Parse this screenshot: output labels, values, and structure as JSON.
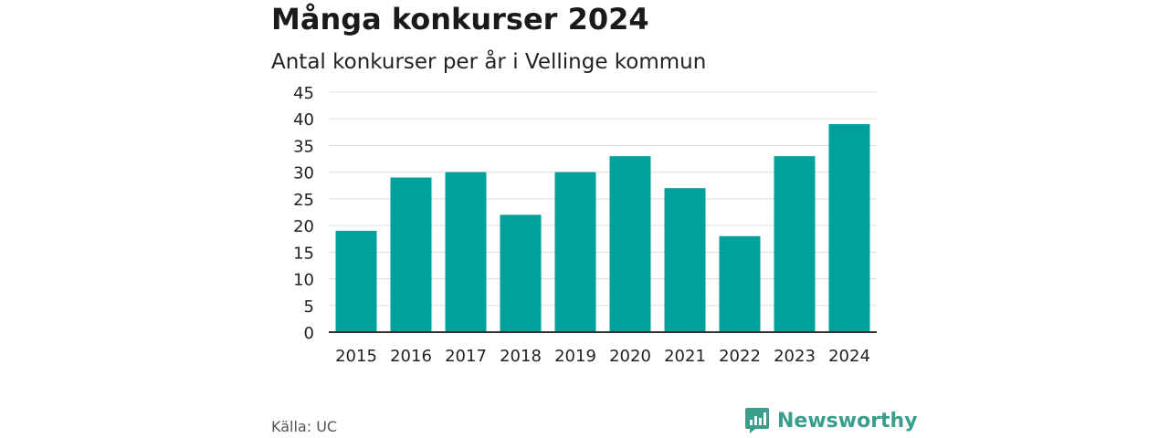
{
  "title": "Många konkurser 2024",
  "subtitle": "Antal konkurser per år i Vellinge kommun",
  "source": "Källa: UC",
  "brand": {
    "name": "Newsworthy",
    "icon": "bar-chart-logo-icon",
    "color": "#3a9e8c"
  },
  "colors": {
    "bar": "#00a19a",
    "grid": "#dddddd",
    "axis": "#333333",
    "text": "#222222"
  },
  "chart_data": {
    "type": "bar",
    "title": "Många konkurser 2024",
    "subtitle": "Antal konkurser per år i Vellinge kommun",
    "xlabel": "",
    "ylabel": "",
    "categories": [
      "2015",
      "2016",
      "2017",
      "2018",
      "2019",
      "2020",
      "2021",
      "2022",
      "2023",
      "2024"
    ],
    "values": [
      19,
      29,
      30,
      22,
      30,
      33,
      27,
      18,
      33,
      39
    ],
    "ylim": [
      0,
      45
    ],
    "yticks": [
      "0",
      "5",
      "10",
      "15",
      "20",
      "25",
      "30",
      "35",
      "40",
      "45"
    ],
    "grid": true,
    "legend": "none"
  }
}
